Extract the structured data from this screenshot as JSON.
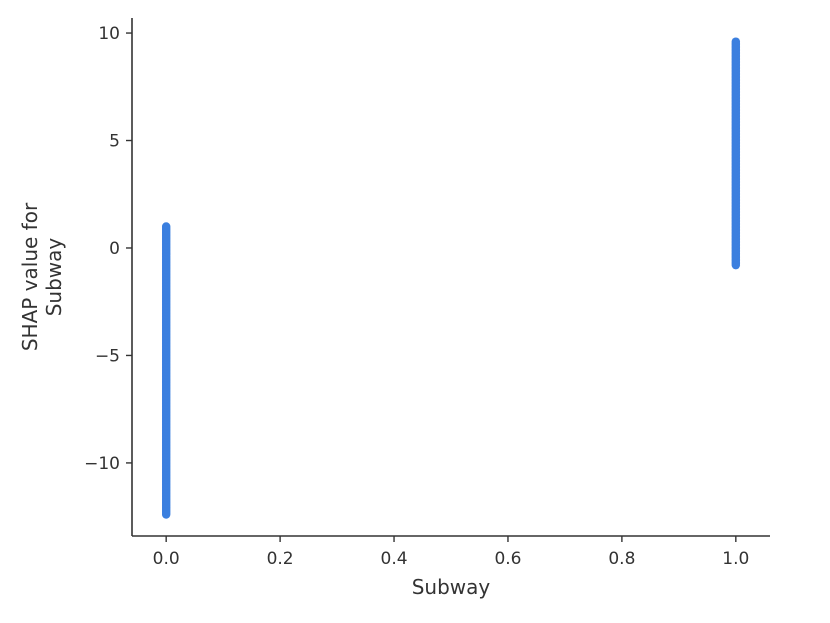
{
  "chart_data": {
    "type": "scatter",
    "title": "",
    "xlabel": "Subway",
    "ylabel_lines": [
      "SHAP value for",
      "Subway"
    ],
    "xlim": [
      -0.06,
      1.06
    ],
    "ylim": [
      -13.4,
      10.7
    ],
    "x_ticks": [
      0.0,
      0.2,
      0.4,
      0.6,
      0.8,
      1.0
    ],
    "x_tick_labels": [
      "0.0",
      "0.2",
      "0.4",
      "0.6",
      "0.8",
      "1.0"
    ],
    "y_ticks": [
      10,
      5,
      0,
      -5,
      -10
    ],
    "y_tick_labels": [
      "10",
      "5",
      "0",
      "−5",
      "−10"
    ],
    "grid": false,
    "legend": "none",
    "point_color": "#3b7fdf",
    "series": [
      {
        "x": 0.0,
        "y_min": -12.4,
        "y_max": 1.0
      },
      {
        "x": 1.0,
        "y_min": -0.8,
        "y_max": 9.6
      }
    ]
  }
}
